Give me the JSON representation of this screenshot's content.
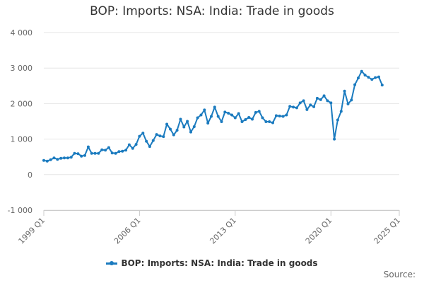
{
  "chart_data": {
    "type": "line",
    "title": "BOP: Imports: NSA: India: Trade in goods",
    "xlabel": "",
    "ylabel": "",
    "xlim": [
      "1999 Q1",
      "2025 Q1"
    ],
    "x_tick_labels": [
      "1999 Q1",
      "2006 Q1",
      "2013 Q1",
      "2020 Q1",
      "2025 Q1"
    ],
    "ylim": [
      -1000,
      4000
    ],
    "y_tick_values": [
      -1000,
      0,
      1000,
      2000,
      3000,
      4000
    ],
    "y_tick_labels": [
      "-1 000",
      "0",
      "1 000",
      "2 000",
      "3 000",
      "4 000"
    ],
    "grid": "horizontal",
    "legend": "bottom-center",
    "colors": {
      "series": "#1b7bbf"
    },
    "series": [
      {
        "name": "BOP: Imports: NSA: India: Trade in goods",
        "start": "1999 Q1",
        "frequency": "quarterly",
        "values": [
          400,
          380,
          420,
          470,
          430,
          460,
          470,
          470,
          490,
          600,
          590,
          520,
          540,
          780,
          600,
          600,
          600,
          700,
          690,
          760,
          610,
          600,
          650,
          660,
          690,
          840,
          740,
          850,
          1080,
          1170,
          940,
          790,
          960,
          1130,
          1090,
          1070,
          1420,
          1280,
          1120,
          1250,
          1560,
          1340,
          1500,
          1200,
          1350,
          1600,
          1680,
          1820,
          1450,
          1640,
          1900,
          1640,
          1490,
          1760,
          1730,
          1680,
          1600,
          1720,
          1490,
          1550,
          1610,
          1560,
          1750,
          1780,
          1600,
          1490,
          1490,
          1460,
          1660,
          1650,
          1640,
          1680,
          1920,
          1900,
          1880,
          2020,
          2080,
          1830,
          1960,
          1910,
          2150,
          2110,
          2220,
          2080,
          2020,
          1000,
          1540,
          1780,
          2350,
          1990,
          2100,
          2530,
          2720,
          2910,
          2800,
          2740,
          2680,
          2730,
          2750,
          2520
        ]
      }
    ]
  },
  "legend": {
    "label": "BOP: Imports: NSA: India: Trade in goods"
  },
  "footer": {
    "source": "Source:"
  }
}
